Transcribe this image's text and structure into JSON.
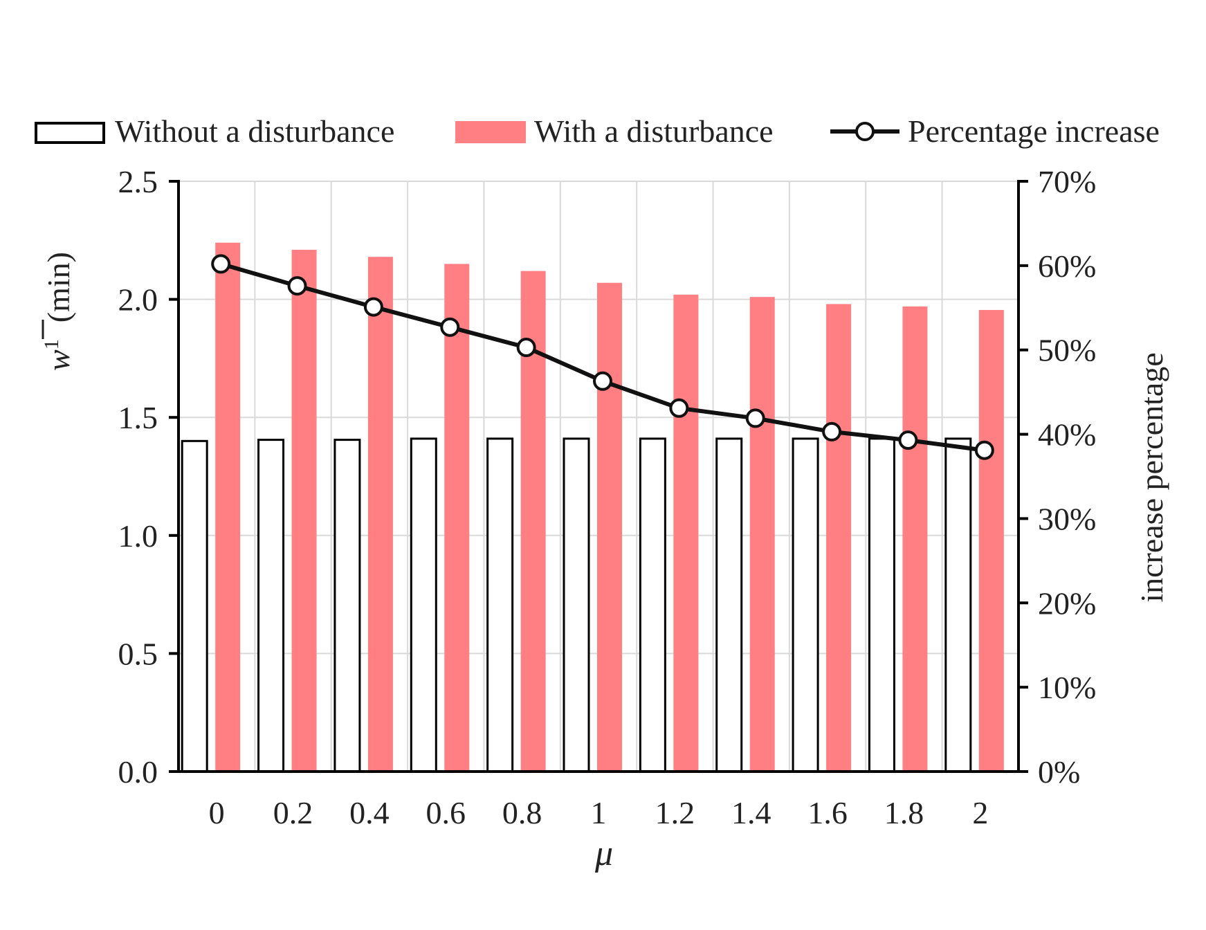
{
  "chart_data": {
    "type": "bar",
    "categories": [
      "0",
      "0.2",
      "0.4",
      "0.6",
      "0.8",
      "1",
      "1.2",
      "1.4",
      "1.6",
      "1.8",
      "2"
    ],
    "series": [
      {
        "name": "Without a disturbance",
        "type": "bar",
        "axis": "left",
        "color": "#ffffff",
        "values": [
          1.4,
          1.405,
          1.405,
          1.41,
          1.41,
          1.41,
          1.41,
          1.41,
          1.41,
          1.41,
          1.41
        ]
      },
      {
        "name": "With a disturbance",
        "type": "bar",
        "axis": "left",
        "color": "#ff7f83",
        "values": [
          2.24,
          2.21,
          2.18,
          2.15,
          2.12,
          2.07,
          2.02,
          2.01,
          1.98,
          1.97,
          1.955
        ]
      },
      {
        "name": "Percentage increase",
        "type": "line",
        "axis": "right",
        "color": "#111111",
        "marker": "open-circle",
        "values": [
          0.602,
          0.576,
          0.551,
          0.527,
          0.503,
          0.463,
          0.431,
          0.419,
          0.403,
          0.393,
          0.381
        ]
      }
    ],
    "xlabel": "μ",
    "ylabel_left": {
      "symbol": "w",
      "superscript": "1",
      "unit": "(min)"
    },
    "ylabel_right": "increase percentage",
    "ylim_left": [
      0,
      2.5
    ],
    "yticks_left": [
      "0.0",
      "0.5",
      "1.0",
      "1.5",
      "2.0",
      "2.5"
    ],
    "ylim_right": [
      0,
      0.7
    ],
    "yticks_right": [
      "0%",
      "10%",
      "20%",
      "30%",
      "40%",
      "50%",
      "60%",
      "70%"
    ],
    "grid": true,
    "legend_position": "top"
  }
}
